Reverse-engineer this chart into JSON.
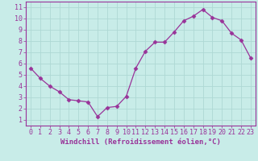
{
  "x": [
    0,
    1,
    2,
    3,
    4,
    5,
    6,
    7,
    8,
    9,
    10,
    11,
    12,
    13,
    14,
    15,
    16,
    17,
    18,
    19,
    20,
    21,
    22,
    23
  ],
  "y": [
    5.6,
    4.7,
    4.0,
    3.5,
    2.8,
    2.7,
    2.6,
    1.3,
    2.1,
    2.2,
    3.1,
    5.6,
    7.1,
    7.9,
    7.9,
    8.8,
    9.8,
    10.2,
    10.8,
    10.1,
    9.8,
    8.7,
    8.1,
    6.5
  ],
  "line_color": "#993399",
  "marker_color": "#993399",
  "bg_color": "#c8ece8",
  "grid_color": "#aed8d4",
  "xlabel": "Windchill (Refroidissement éolien,°C)",
  "ylim_min": 0.5,
  "ylim_max": 11.5,
  "xlim_min": -0.5,
  "xlim_max": 23.5,
  "yticks": [
    1,
    2,
    3,
    4,
    5,
    6,
    7,
    8,
    9,
    10,
    11
  ],
  "xticks": [
    0,
    1,
    2,
    3,
    4,
    5,
    6,
    7,
    8,
    9,
    10,
    11,
    12,
    13,
    14,
    15,
    16,
    17,
    18,
    19,
    20,
    21,
    22,
    23
  ],
  "tick_color": "#993399",
  "label_color": "#993399",
  "spine_color": "#993399",
  "font_size_xlabel": 6.5,
  "font_size_ticks": 6.0,
  "line_width": 0.9,
  "marker_size": 2.5
}
